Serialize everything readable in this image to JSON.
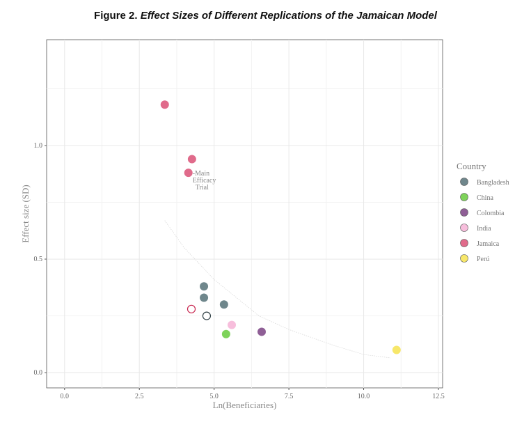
{
  "chart_data": {
    "type": "scatter",
    "title_prefix": "Figure 2.",
    "title": "Effect Sizes of Different Replications of the Jamaican Model",
    "xlabel": "Ln(Beneficiaries)",
    "ylabel": "Effect size (SD)",
    "xlim": [
      -0.6,
      12.64
    ],
    "ylim": [
      -0.067,
      1.466
    ],
    "xticks": [
      "0.0",
      "2.5",
      "5.0",
      "7.5",
      "10.0",
      "12.5"
    ],
    "xtick_values": [
      0,
      2.5,
      5,
      7.5,
      10,
      12.5
    ],
    "yticks": [
      "0.0",
      "0.5",
      "1.0"
    ],
    "ytick_values": [
      0,
      0.5,
      1.0
    ],
    "grid": true,
    "legend": {
      "title": "Country",
      "placement": "right",
      "entries": [
        {
          "name": "Bangladesh",
          "color": "#6f878c"
        },
        {
          "name": "China",
          "color": "#7ed35a"
        },
        {
          "name": "Colombia",
          "color": "#8f5f96"
        },
        {
          "name": "India",
          "color": "#f7bedc"
        },
        {
          "name": "Jamaica",
          "color": "#e06b8b"
        },
        {
          "name": "Perú",
          "color": "#f7e76a"
        }
      ]
    },
    "points": [
      {
        "country": "Jamaica",
        "x": 3.35,
        "y": 1.18,
        "filled": true
      },
      {
        "country": "Jamaica",
        "x": 4.26,
        "y": 0.94,
        "filled": true
      },
      {
        "country": "Jamaica",
        "x": 4.14,
        "y": 0.88,
        "filled": true
      },
      {
        "country": "Bangladesh",
        "x": 4.66,
        "y": 0.38,
        "filled": true
      },
      {
        "country": "Bangladesh",
        "x": 4.66,
        "y": 0.33,
        "filled": true
      },
      {
        "country": "Bangladesh",
        "x": 5.33,
        "y": 0.3,
        "filled": true
      },
      {
        "country": "Jamaica",
        "x": 4.24,
        "y": 0.28,
        "filled": false,
        "stroke": "#c8264f"
      },
      {
        "country": "Bangladesh",
        "x": 4.75,
        "y": 0.25,
        "filled": false,
        "stroke": "#2f3f44"
      },
      {
        "country": "India",
        "x": 5.59,
        "y": 0.21,
        "filled": true
      },
      {
        "country": "China",
        "x": 5.4,
        "y": 0.17,
        "filled": true
      },
      {
        "country": "Colombia",
        "x": 6.59,
        "y": 0.18,
        "filled": true
      },
      {
        "country": "Perú",
        "x": 11.1,
        "y": 0.1,
        "filled": true
      }
    ],
    "annotation": {
      "lines": [
        "-Main",
        "Efficacy",
        "Trial"
      ],
      "x": 4.14,
      "y": 0.88
    },
    "trend": {
      "x": [
        3.35,
        4.0,
        5.0,
        6.5,
        7.5,
        9.0,
        10.0,
        10.9
      ],
      "y": [
        0.67,
        0.55,
        0.41,
        0.25,
        0.19,
        0.12,
        0.08,
        0.065
      ]
    }
  }
}
